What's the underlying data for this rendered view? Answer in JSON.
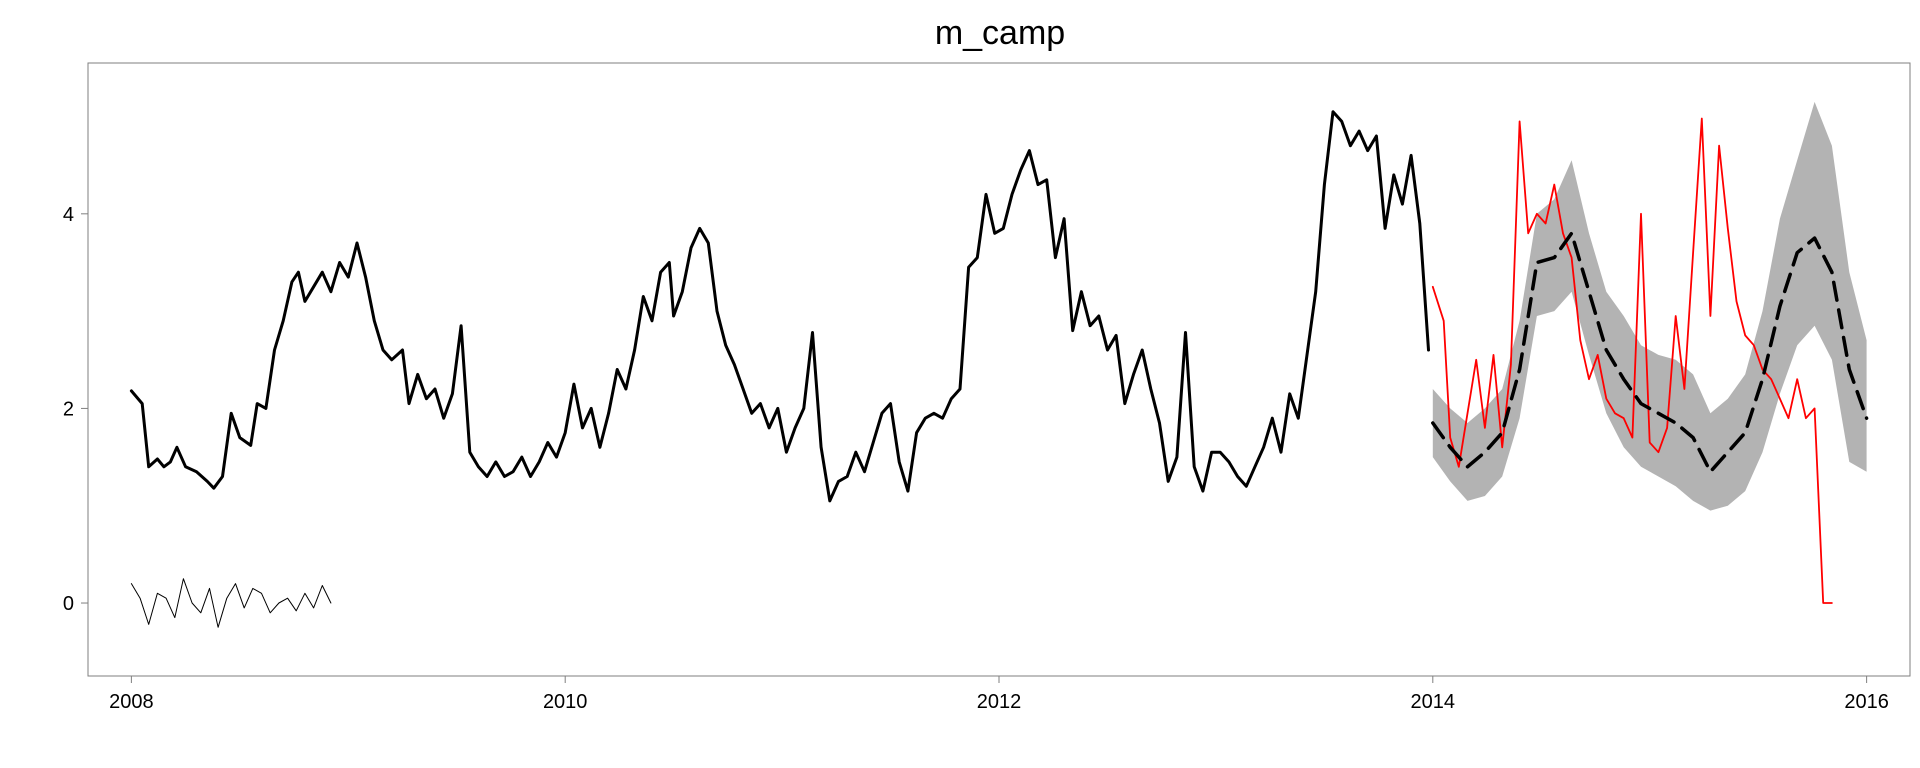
{
  "chart_data": {
    "type": "line",
    "title": "m_camp",
    "xlabel": "",
    "ylabel": "",
    "xlim": [
      2007.8,
      2016.2
    ],
    "ylim": [
      -0.75,
      5.55
    ],
    "x_ticks": [
      2008,
      2010,
      2012,
      2014,
      2016
    ],
    "y_ticks": [
      0,
      2,
      4
    ],
    "grid": false,
    "legend": "none",
    "series": [
      {
        "role": "observed",
        "color": "#000000",
        "points": [
          [
            2008.0,
            2.18
          ],
          [
            2008.05,
            2.05
          ],
          [
            2008.08,
            1.4
          ],
          [
            2008.12,
            1.48
          ],
          [
            2008.15,
            1.4
          ],
          [
            2008.18,
            1.45
          ],
          [
            2008.21,
            1.6
          ],
          [
            2008.25,
            1.4
          ],
          [
            2008.3,
            1.35
          ],
          [
            2008.35,
            1.25
          ],
          [
            2008.38,
            1.18
          ],
          [
            2008.42,
            1.3
          ],
          [
            2008.46,
            1.95
          ],
          [
            2008.5,
            1.7
          ],
          [
            2008.55,
            1.62
          ],
          [
            2008.58,
            2.05
          ],
          [
            2008.62,
            2.0
          ],
          [
            2008.66,
            2.6
          ],
          [
            2008.7,
            2.9
          ],
          [
            2008.74,
            3.3
          ],
          [
            2008.77,
            3.4
          ],
          [
            2008.8,
            3.1
          ],
          [
            2008.84,
            3.25
          ],
          [
            2008.88,
            3.4
          ],
          [
            2008.92,
            3.2
          ],
          [
            2008.96,
            3.5
          ],
          [
            2009.0,
            3.35
          ],
          [
            2009.04,
            3.7
          ],
          [
            2009.08,
            3.35
          ],
          [
            2009.12,
            2.9
          ],
          [
            2009.16,
            2.6
          ],
          [
            2009.2,
            2.5
          ],
          [
            2009.25,
            2.6
          ],
          [
            2009.28,
            2.05
          ],
          [
            2009.32,
            2.35
          ],
          [
            2009.36,
            2.1
          ],
          [
            2009.4,
            2.2
          ],
          [
            2009.44,
            1.9
          ],
          [
            2009.48,
            2.15
          ],
          [
            2009.52,
            2.85
          ],
          [
            2009.56,
            1.55
          ],
          [
            2009.6,
            1.4
          ],
          [
            2009.64,
            1.3
          ],
          [
            2009.68,
            1.45
          ],
          [
            2009.72,
            1.3
          ],
          [
            2009.76,
            1.35
          ],
          [
            2009.8,
            1.5
          ],
          [
            2009.84,
            1.3
          ],
          [
            2009.88,
            1.45
          ],
          [
            2009.92,
            1.65
          ],
          [
            2009.96,
            1.5
          ],
          [
            2010.0,
            1.75
          ],
          [
            2010.04,
            2.25
          ],
          [
            2010.08,
            1.8
          ],
          [
            2010.12,
            2.0
          ],
          [
            2010.16,
            1.6
          ],
          [
            2010.2,
            1.95
          ],
          [
            2010.24,
            2.4
          ],
          [
            2010.28,
            2.2
          ],
          [
            2010.32,
            2.6
          ],
          [
            2010.36,
            3.15
          ],
          [
            2010.4,
            2.9
          ],
          [
            2010.44,
            3.4
          ],
          [
            2010.48,
            3.5
          ],
          [
            2010.5,
            2.95
          ],
          [
            2010.54,
            3.2
          ],
          [
            2010.58,
            3.65
          ],
          [
            2010.62,
            3.85
          ],
          [
            2010.66,
            3.7
          ],
          [
            2010.7,
            3.0
          ],
          [
            2010.74,
            2.65
          ],
          [
            2010.78,
            2.45
          ],
          [
            2010.82,
            2.2
          ],
          [
            2010.86,
            1.95
          ],
          [
            2010.9,
            2.05
          ],
          [
            2010.94,
            1.8
          ],
          [
            2010.98,
            2.0
          ],
          [
            2011.02,
            1.55
          ],
          [
            2011.06,
            1.8
          ],
          [
            2011.1,
            2.0
          ],
          [
            2011.14,
            2.78
          ],
          [
            2011.18,
            1.6
          ],
          [
            2011.22,
            1.05
          ],
          [
            2011.26,
            1.25
          ],
          [
            2011.3,
            1.3
          ],
          [
            2011.34,
            1.55
          ],
          [
            2011.38,
            1.35
          ],
          [
            2011.42,
            1.65
          ],
          [
            2011.46,
            1.95
          ],
          [
            2011.5,
            2.05
          ],
          [
            2011.54,
            1.45
          ],
          [
            2011.58,
            1.15
          ],
          [
            2011.62,
            1.75
          ],
          [
            2011.66,
            1.9
          ],
          [
            2011.7,
            1.95
          ],
          [
            2011.74,
            1.9
          ],
          [
            2011.78,
            2.1
          ],
          [
            2011.82,
            2.2
          ],
          [
            2011.86,
            3.45
          ],
          [
            2011.9,
            3.55
          ],
          [
            2011.94,
            4.2
          ],
          [
            2011.98,
            3.8
          ],
          [
            2012.02,
            3.85
          ],
          [
            2012.06,
            4.2
          ],
          [
            2012.1,
            4.45
          ],
          [
            2012.14,
            4.65
          ],
          [
            2012.18,
            4.3
          ],
          [
            2012.22,
            4.35
          ],
          [
            2012.26,
            3.55
          ],
          [
            2012.3,
            3.95
          ],
          [
            2012.34,
            2.8
          ],
          [
            2012.38,
            3.2
          ],
          [
            2012.42,
            2.85
          ],
          [
            2012.46,
            2.95
          ],
          [
            2012.5,
            2.6
          ],
          [
            2012.54,
            2.75
          ],
          [
            2012.58,
            2.05
          ],
          [
            2012.62,
            2.35
          ],
          [
            2012.66,
            2.6
          ],
          [
            2012.7,
            2.2
          ],
          [
            2012.74,
            1.85
          ],
          [
            2012.78,
            1.25
          ],
          [
            2012.82,
            1.5
          ],
          [
            2012.86,
            2.78
          ],
          [
            2012.9,
            1.4
          ],
          [
            2012.94,
            1.15
          ],
          [
            2012.98,
            1.55
          ],
          [
            2013.02,
            1.55
          ],
          [
            2013.06,
            1.45
          ],
          [
            2013.1,
            1.3
          ],
          [
            2013.14,
            1.2
          ],
          [
            2013.18,
            1.4
          ],
          [
            2013.22,
            1.6
          ],
          [
            2013.26,
            1.9
          ],
          [
            2013.3,
            1.55
          ],
          [
            2013.34,
            2.15
          ],
          [
            2013.38,
            1.9
          ],
          [
            2013.42,
            2.55
          ],
          [
            2013.46,
            3.2
          ],
          [
            2013.5,
            4.3
          ],
          [
            2013.54,
            5.05
          ],
          [
            2013.58,
            4.95
          ],
          [
            2013.62,
            4.7
          ],
          [
            2013.66,
            4.85
          ],
          [
            2013.7,
            4.65
          ],
          [
            2013.74,
            4.8
          ],
          [
            2013.78,
            3.85
          ],
          [
            2013.82,
            4.4
          ],
          [
            2013.86,
            4.1
          ],
          [
            2013.9,
            4.6
          ],
          [
            2013.94,
            3.9
          ],
          [
            2013.98,
            2.6
          ]
        ]
      },
      {
        "role": "residual",
        "color": "#000000",
        "points": [
          [
            2008.0,
            0.2
          ],
          [
            2008.04,
            0.05
          ],
          [
            2008.08,
            -0.22
          ],
          [
            2008.12,
            0.1
          ],
          [
            2008.16,
            0.05
          ],
          [
            2008.2,
            -0.15
          ],
          [
            2008.24,
            0.25
          ],
          [
            2008.28,
            0.0
          ],
          [
            2008.32,
            -0.1
          ],
          [
            2008.36,
            0.15
          ],
          [
            2008.4,
            -0.25
          ],
          [
            2008.44,
            0.05
          ],
          [
            2008.48,
            0.2
          ],
          [
            2008.52,
            -0.05
          ],
          [
            2008.56,
            0.15
          ],
          [
            2008.6,
            0.1
          ],
          [
            2008.64,
            -0.1
          ],
          [
            2008.68,
            0.0
          ],
          [
            2008.72,
            0.05
          ],
          [
            2008.76,
            -0.08
          ],
          [
            2008.8,
            0.1
          ],
          [
            2008.84,
            -0.05
          ],
          [
            2008.88,
            0.18
          ],
          [
            2008.92,
            0.0
          ]
        ]
      },
      {
        "role": "actual",
        "color": "#ff0000",
        "points": [
          [
            2014.0,
            3.25
          ],
          [
            2014.05,
            2.9
          ],
          [
            2014.08,
            1.7
          ],
          [
            2014.12,
            1.4
          ],
          [
            2014.16,
            1.95
          ],
          [
            2014.2,
            2.5
          ],
          [
            2014.24,
            1.8
          ],
          [
            2014.28,
            2.55
          ],
          [
            2014.32,
            1.6
          ],
          [
            2014.36,
            2.45
          ],
          [
            2014.4,
            4.95
          ],
          [
            2014.44,
            3.8
          ],
          [
            2014.48,
            4.0
          ],
          [
            2014.52,
            3.9
          ],
          [
            2014.56,
            4.3
          ],
          [
            2014.6,
            3.8
          ],
          [
            2014.64,
            3.55
          ],
          [
            2014.68,
            2.7
          ],
          [
            2014.72,
            2.3
          ],
          [
            2014.76,
            2.55
          ],
          [
            2014.8,
            2.1
          ],
          [
            2014.84,
            1.95
          ],
          [
            2014.88,
            1.9
          ],
          [
            2014.92,
            1.7
          ],
          [
            2014.96,
            4.0
          ],
          [
            2015.0,
            1.65
          ],
          [
            2015.04,
            1.55
          ],
          [
            2015.08,
            1.8
          ],
          [
            2015.12,
            2.95
          ],
          [
            2015.16,
            2.2
          ],
          [
            2015.2,
            3.6
          ],
          [
            2015.24,
            4.98
          ],
          [
            2015.28,
            2.95
          ],
          [
            2015.32,
            4.7
          ],
          [
            2015.36,
            3.85
          ],
          [
            2015.4,
            3.1
          ],
          [
            2015.44,
            2.75
          ],
          [
            2015.48,
            2.65
          ],
          [
            2015.52,
            2.4
          ],
          [
            2015.56,
            2.3
          ],
          [
            2015.6,
            2.1
          ],
          [
            2015.64,
            1.9
          ],
          [
            2015.68,
            2.3
          ],
          [
            2015.72,
            1.9
          ],
          [
            2015.76,
            2.0
          ],
          [
            2015.8,
            0.0
          ],
          [
            2015.84,
            0.0
          ]
        ]
      },
      {
        "role": "forecast",
        "color": "#000000",
        "style": "dashed",
        "points": [
          [
            2014.0,
            1.85
          ],
          [
            2014.08,
            1.6
          ],
          [
            2014.16,
            1.4
          ],
          [
            2014.24,
            1.55
          ],
          [
            2014.32,
            1.75
          ],
          [
            2014.4,
            2.4
          ],
          [
            2014.48,
            3.5
          ],
          [
            2014.56,
            3.55
          ],
          [
            2014.64,
            3.8
          ],
          [
            2014.72,
            3.2
          ],
          [
            2014.8,
            2.6
          ],
          [
            2014.88,
            2.3
          ],
          [
            2014.96,
            2.05
          ],
          [
            2015.04,
            1.95
          ],
          [
            2015.12,
            1.85
          ],
          [
            2015.2,
            1.7
          ],
          [
            2015.28,
            1.35
          ],
          [
            2015.36,
            1.55
          ],
          [
            2015.44,
            1.75
          ],
          [
            2015.52,
            2.3
          ],
          [
            2015.6,
            3.05
          ],
          [
            2015.68,
            3.6
          ],
          [
            2015.76,
            3.75
          ],
          [
            2015.84,
            3.4
          ],
          [
            2015.92,
            2.4
          ],
          [
            2016.0,
            1.9
          ]
        ]
      }
    ],
    "forecast_band": {
      "role": "prediction-interval",
      "color": "#b3b3b3",
      "points": [
        [
          2014.0,
          1.5,
          2.2
        ],
        [
          2014.08,
          1.25,
          2.0
        ],
        [
          2014.16,
          1.05,
          1.85
        ],
        [
          2014.24,
          1.1,
          2.0
        ],
        [
          2014.32,
          1.3,
          2.2
        ],
        [
          2014.4,
          1.9,
          2.9
        ],
        [
          2014.48,
          2.95,
          4.0
        ],
        [
          2014.56,
          3.0,
          4.15
        ],
        [
          2014.64,
          3.2,
          4.55
        ],
        [
          2014.72,
          2.55,
          3.8
        ],
        [
          2014.8,
          1.95,
          3.2
        ],
        [
          2014.88,
          1.6,
          2.95
        ],
        [
          2014.96,
          1.4,
          2.65
        ],
        [
          2015.04,
          1.3,
          2.55
        ],
        [
          2015.12,
          1.2,
          2.5
        ],
        [
          2015.2,
          1.05,
          2.35
        ],
        [
          2015.28,
          0.95,
          1.95
        ],
        [
          2015.36,
          1.0,
          2.1
        ],
        [
          2015.44,
          1.15,
          2.35
        ],
        [
          2015.52,
          1.55,
          3.0
        ],
        [
          2015.6,
          2.15,
          3.95
        ],
        [
          2015.68,
          2.65,
          4.55
        ],
        [
          2015.76,
          2.85,
          5.15
        ],
        [
          2015.84,
          2.5,
          4.7
        ],
        [
          2015.92,
          1.45,
          3.4
        ],
        [
          2016.0,
          1.35,
          2.7
        ]
      ]
    }
  }
}
